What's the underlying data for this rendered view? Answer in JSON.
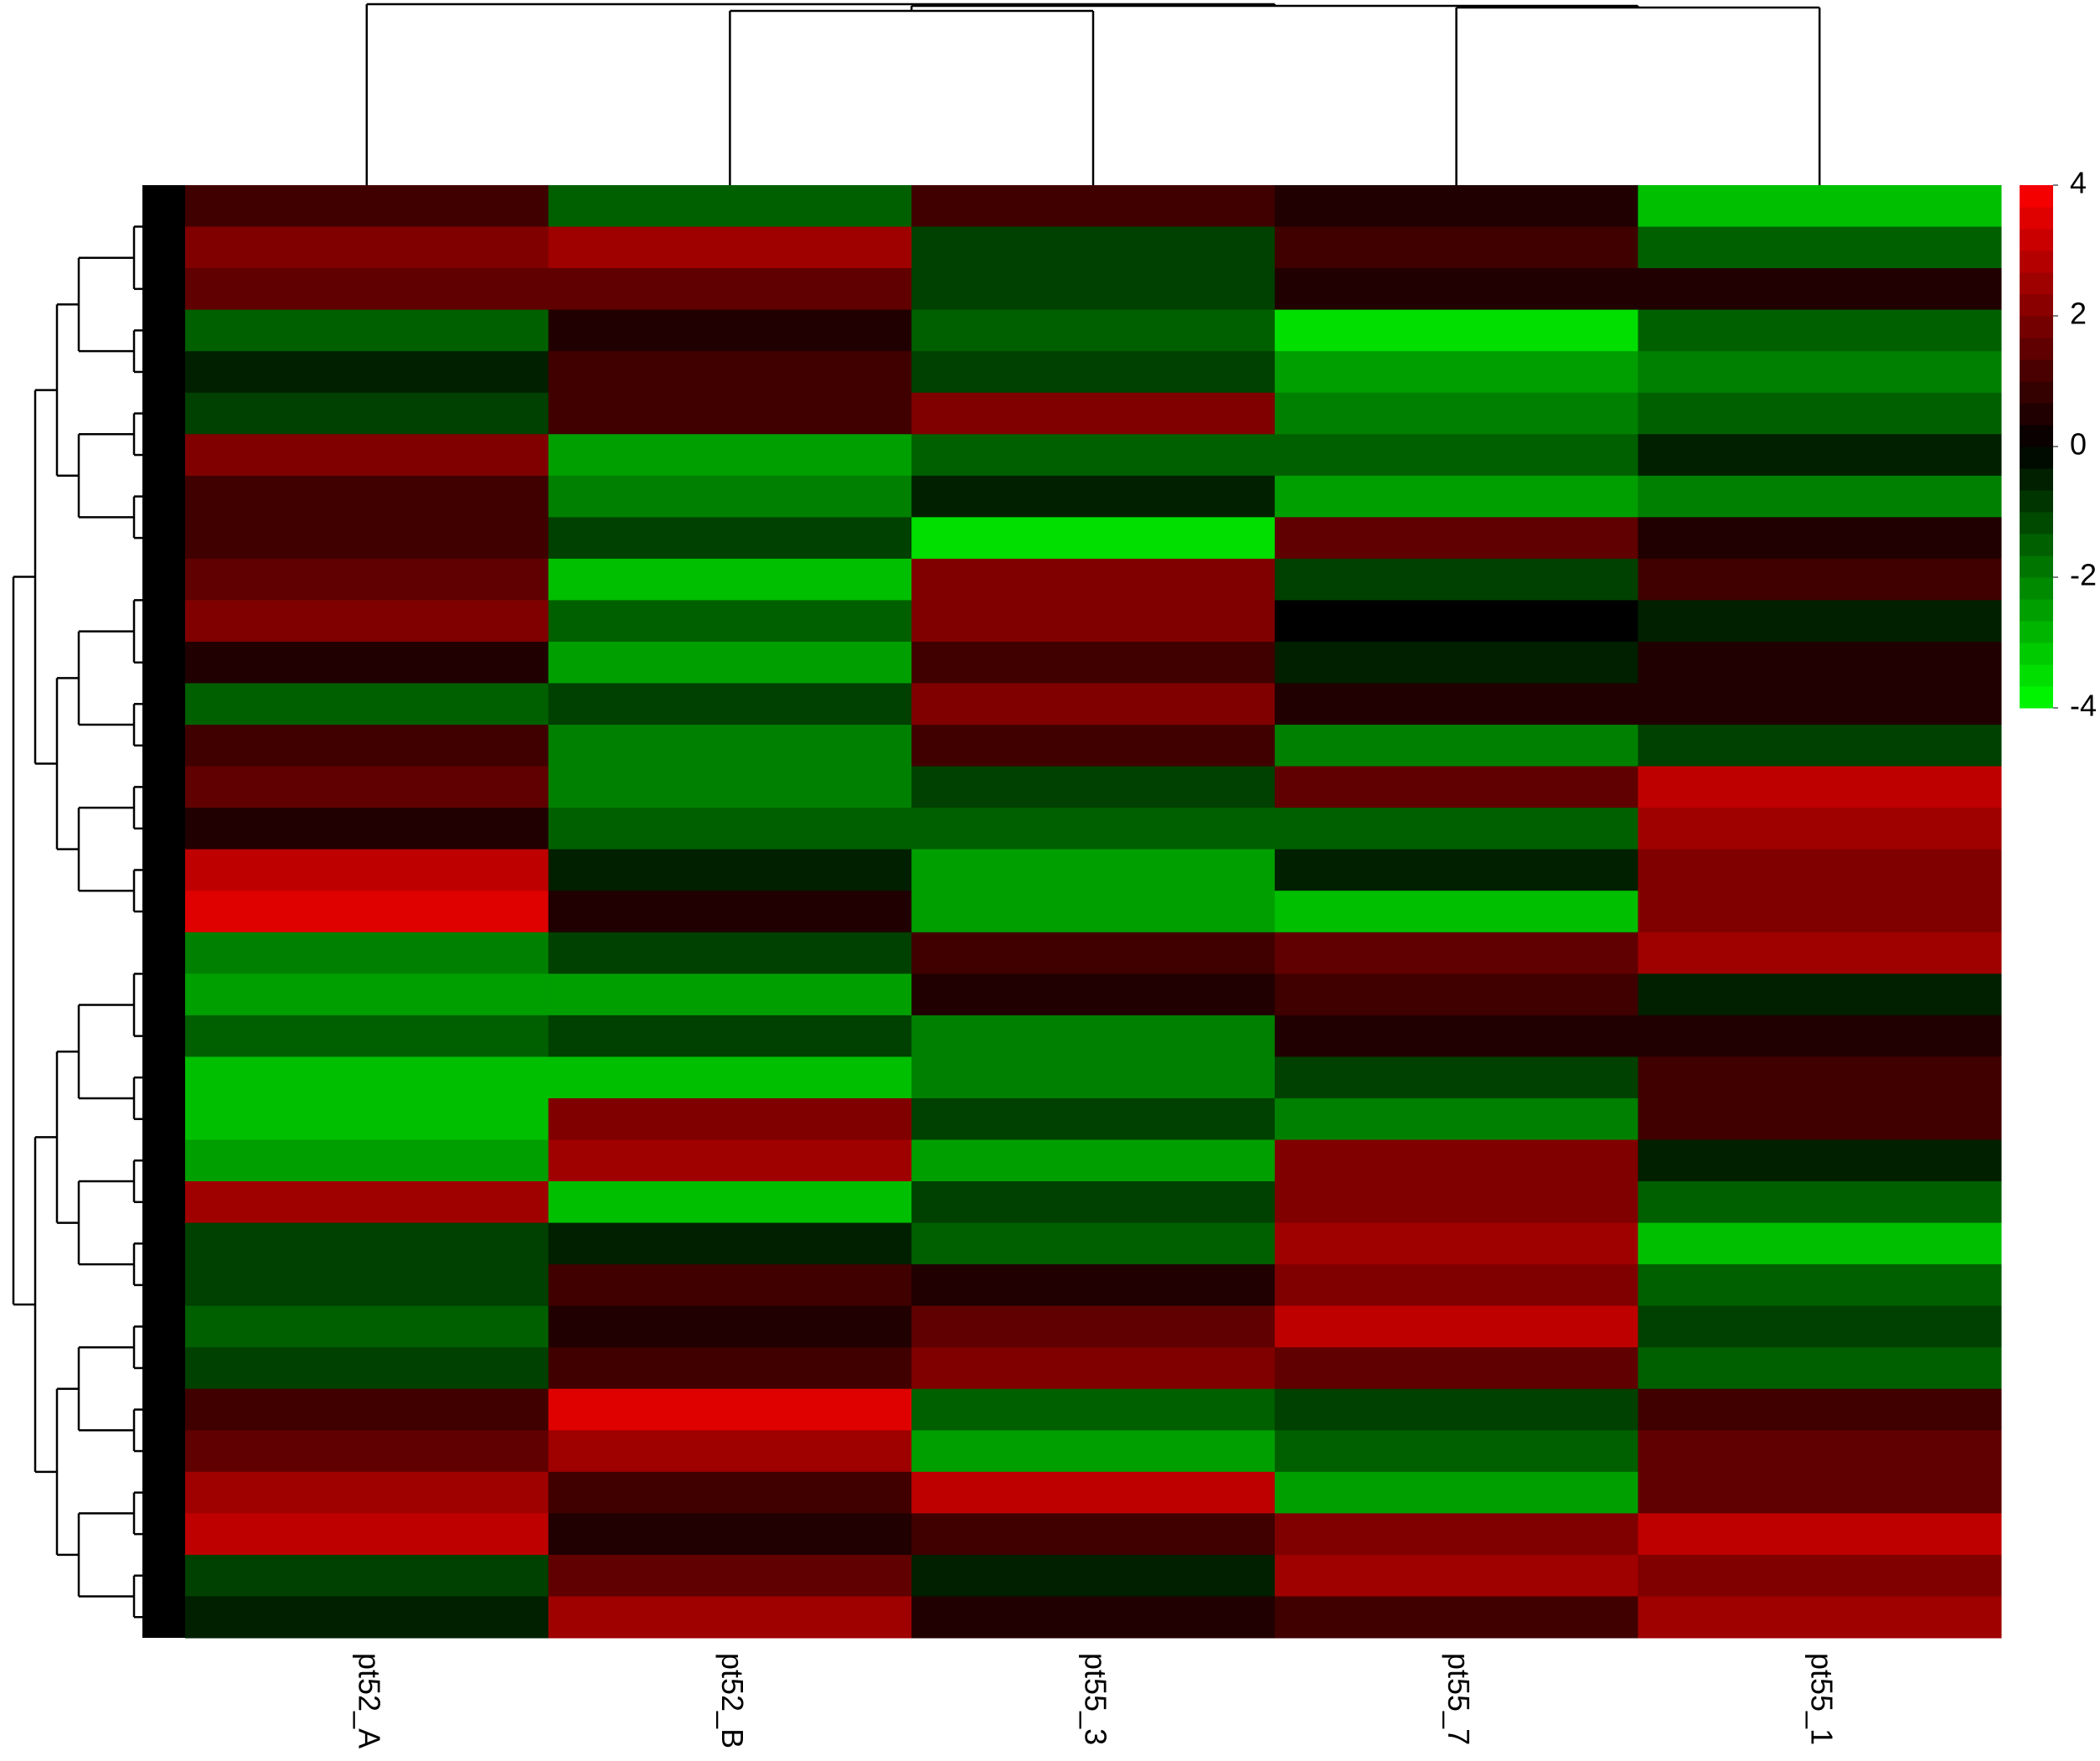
{
  "chart_data": {
    "type": "heatmap",
    "categories": [
      "pt52_A",
      "pt52_B",
      "pt55_3",
      "pt55_7",
      "pt55_1"
    ],
    "values": [
      [
        1,
        -1.5,
        1,
        0.5,
        -3
      ],
      [
        2,
        2.5,
        -1,
        1,
        -1.5
      ],
      [
        1.5,
        1.5,
        -1,
        0.5,
        0.5
      ],
      [
        -1.5,
        0.5,
        -1.5,
        -3.5,
        -1.5
      ],
      [
        -0.5,
        1,
        -1,
        -2.5,
        -2
      ],
      [
        -1,
        1,
        2,
        -2,
        -1.5
      ],
      [
        2,
        -2.5,
        -1.5,
        -1.5,
        -0.5
      ],
      [
        1,
        -2,
        -0.5,
        -2.5,
        -2
      ],
      [
        1,
        -1,
        -3.5,
        1.5,
        0.5
      ],
      [
        1.5,
        -3,
        2,
        -1,
        1
      ],
      [
        2,
        -1.5,
        2,
        0,
        -0.5
      ],
      [
        0.5,
        -2.5,
        1,
        -0.5,
        0.5
      ],
      [
        -1.5,
        -1,
        2,
        0.5,
        0.5
      ],
      [
        1,
        -2,
        1,
        -2,
        -1
      ],
      [
        1.5,
        -2,
        -1,
        1.5,
        3
      ],
      [
        0.5,
        -1.5,
        -1.5,
        -1.5,
        2.5
      ],
      [
        3,
        -0.5,
        -2.5,
        -0.5,
        2
      ],
      [
        3.5,
        0.5,
        -2.5,
        -3,
        2
      ],
      [
        -2,
        -1,
        1,
        1.5,
        2.5
      ],
      [
        -2.5,
        -2.5,
        0.5,
        1,
        -0.5
      ],
      [
        -1.5,
        -1,
        -2,
        0.5,
        0.5
      ],
      [
        -3,
        -3,
        -2,
        -1,
        1
      ],
      [
        -3,
        2,
        -1,
        -2,
        1
      ],
      [
        -2.5,
        2.5,
        -2.5,
        2,
        -0.5
      ],
      [
        2.5,
        -3,
        -1,
        2,
        -1.5
      ],
      [
        -1,
        -0.5,
        -1.5,
        2.5,
        -3
      ],
      [
        -1,
        1,
        0.5,
        2,
        -1.5
      ],
      [
        -1.5,
        0.5,
        1.5,
        3,
        -1
      ],
      [
        -1,
        1,
        2,
        1.5,
        -1.5
      ],
      [
        1,
        3.5,
        -1.5,
        -1,
        1
      ],
      [
        1.5,
        2.5,
        -2.5,
        -1.5,
        1.5
      ],
      [
        2.5,
        1,
        3,
        -2.5,
        1.5
      ],
      [
        3,
        0.5,
        1,
        2,
        3
      ],
      [
        -1,
        1.5,
        -0.5,
        2.5,
        2
      ],
      [
        -0.5,
        2.5,
        0.5,
        1,
        2.5
      ]
    ],
    "colors": {
      "low": "#00ff00",
      "mid": "#000000",
      "high": "#ff0000"
    },
    "clim": [
      -4,
      4
    ],
    "cticks": [
      4,
      2,
      0,
      -2,
      -4
    ]
  }
}
